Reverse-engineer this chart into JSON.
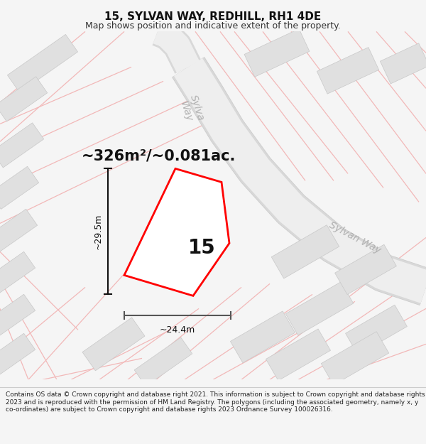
{
  "title": "15, SYLVAN WAY, REDHILL, RH1 4DE",
  "subtitle": "Map shows position and indicative extent of the property.",
  "area_text": "~326m²/~0.081ac.",
  "width_label": "~24.4m",
  "height_label": "~29.5m",
  "property_number": "15",
  "footer_text": "Contains OS data © Crown copyright and database right 2021. This information is subject to Crown copyright and database rights 2023 and is reproduced with the permission of HM Land Registry. The polygons (including the associated geometry, namely x, y co-ordinates) are subject to Crown copyright and database rights 2023 Ordnance Survey 100026316.",
  "bg_color": "#f5f5f5",
  "map_bg": "#ffffff",
  "road_color": "#f2b8b8",
  "road_color_dark": "#e8a0a0",
  "building_fill": "#e0e0e0",
  "building_edge": "#c8c8c8",
  "road_band_color": "#eeeeee",
  "road_band_edge": "#cccccc",
  "prop_fill": "#ffffff",
  "prop_edge": "#ff0000",
  "dim_color": "#333333",
  "label_color": "#bbbbbb",
  "title_fontsize": 11,
  "subtitle_fontsize": 9,
  "footer_fontsize": 6.5
}
